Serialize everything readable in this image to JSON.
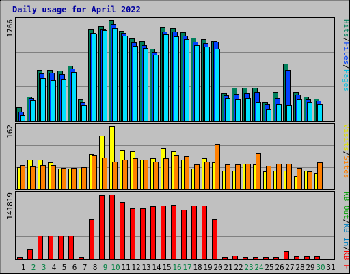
{
  "title": "Daily usage for April 2022",
  "colors": {
    "background": "#c0c0c0",
    "frame": "#e6e6e6",
    "title": "#0000a0",
    "weekday_label": "#00a000",
    "weekend_label": "#008040",
    "hits": "#00805c",
    "files": "#0040ff",
    "pages": "#00e0ff",
    "visits": "#ffff00",
    "sites": "#ff8000",
    "kb_in": "#0080c0",
    "kb_out": "#00a000",
    "kb_f": "#ff0000"
  },
  "chart_data": [
    {
      "type": "bar",
      "name": "hits-files-pages",
      "ymax_label": "1766",
      "ylim": [
        0,
        1766
      ],
      "legend": [
        "Pages",
        "Files",
        "Hits"
      ],
      "x": [
        "1",
        "2",
        "3",
        "4",
        "5",
        "6",
        "7",
        "8",
        "9",
        "10",
        "11",
        "12",
        "13",
        "14",
        "15",
        "16",
        "17",
        "18",
        "19",
        "20",
        "21",
        "22",
        "23",
        "24",
        "25",
        "26",
        "27",
        "28",
        "29",
        "30",
        "31"
      ],
      "weekend_days": [
        "2",
        "3",
        "9",
        "10",
        "16",
        "17",
        "23",
        "24",
        "30"
      ],
      "series": [
        {
          "name": "Hits",
          "values": [
            250,
            430,
            900,
            900,
            880,
            970,
            380,
            1600,
            1660,
            1766,
            1580,
            1440,
            1400,
            1270,
            1630,
            1620,
            1550,
            1460,
            1430,
            1400,
            490,
            590,
            590,
            590,
            330,
            500,
            1000,
            500,
            430,
            390,
            0
          ]
        },
        {
          "name": "Files",
          "values": [
            170,
            400,
            840,
            850,
            820,
            920,
            330,
            1540,
            1600,
            1690,
            1540,
            1370,
            1320,
            1210,
            1560,
            1560,
            1490,
            1380,
            1360,
            1390,
            450,
            480,
            490,
            500,
            300,
            400,
            890,
            470,
            380,
            360,
            0
          ]
        },
        {
          "name": "Pages",
          "values": [
            110,
            370,
            750,
            720,
            730,
            860,
            280,
            1530,
            1590,
            1620,
            1490,
            1310,
            1280,
            1160,
            1520,
            1480,
            1430,
            1330,
            1300,
            1270,
            400,
            380,
            400,
            340,
            220,
            300,
            270,
            380,
            330,
            300,
            0
          ]
        }
      ]
    },
    {
      "type": "bar",
      "name": "visits-sites",
      "ymax_label": "162",
      "ylim": [
        0,
        162
      ],
      "legend": [
        "Visits",
        "Sites",
        "KB Out"
      ],
      "x": [
        "1",
        "2",
        "3",
        "4",
        "5",
        "6",
        "7",
        "8",
        "9",
        "10",
        "11",
        "12",
        "13",
        "14",
        "15",
        "16",
        "17",
        "18",
        "19",
        "20",
        "21",
        "22",
        "23",
        "24",
        "25",
        "26",
        "27",
        "28",
        "29",
        "30",
        "31"
      ],
      "series": [
        {
          "name": "Visits",
          "values": [
            56,
            76,
            76,
            68,
            52,
            52,
            52,
            90,
            137,
            162,
            101,
            96,
            76,
            80,
            105,
            96,
            75,
            52,
            79,
            68,
            47,
            48,
            66,
            64,
            46,
            48,
            48,
            34,
            47,
            40,
            0
          ]
        },
        {
          "name": "Sites",
          "values": [
            61,
            58,
            62,
            61,
            54,
            54,
            56,
            86,
            81,
            70,
            75,
            79,
            76,
            70,
            80,
            86,
            84,
            64,
            70,
            117,
            63,
            63,
            65,
            91,
            59,
            65,
            65,
            54,
            45,
            68,
            0
          ]
        }
      ]
    },
    {
      "type": "bar",
      "name": "kbytes",
      "ymax_label": "141819",
      "ylim": [
        0,
        141819
      ],
      "legend": [
        "KB F",
        "KB In",
        "KB Out"
      ],
      "x": [
        "1",
        "2",
        "3",
        "4",
        "5",
        "6",
        "7",
        "8",
        "9",
        "10",
        "11",
        "12",
        "13",
        "14",
        "15",
        "16",
        "17",
        "18",
        "19",
        "20",
        "21",
        "22",
        "23",
        "24",
        "25",
        "26",
        "27",
        "28",
        "29",
        "30",
        "31"
      ],
      "series": [
        {
          "name": "KB F",
          "values": [
            4500,
            20500,
            52000,
            52000,
            52000,
            52000,
            5000,
            88000,
            140000,
            141819,
            125000,
            112000,
            112000,
            116000,
            118000,
            119000,
            108000,
            118000,
            118000,
            87000,
            4500,
            7000,
            4500,
            4500,
            4500,
            4500,
            17000,
            6000,
            6000,
            6000,
            0
          ]
        }
      ]
    }
  ]
}
